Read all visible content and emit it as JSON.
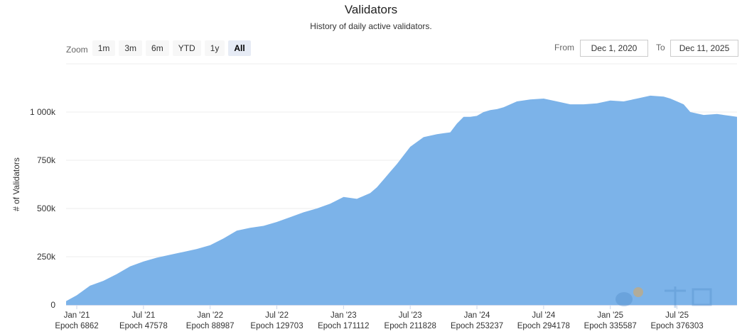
{
  "header": {
    "title": "Validators",
    "subtitle": "History of daily active validators."
  },
  "zoom": {
    "label": "Zoom",
    "buttons": [
      "1m",
      "3m",
      "6m",
      "YTD",
      "1y",
      "All"
    ],
    "active": "All"
  },
  "range": {
    "from_label": "From",
    "from_value": "Dec 1, 2020",
    "to_label": "To",
    "to_value": "Dec 11, 2025"
  },
  "chart_data": {
    "type": "area",
    "title": "Validators",
    "subtitle": "History of daily active validators.",
    "ylabel": "# of Validators",
    "xlabel": "",
    "ylim": [
      0,
      1250000
    ],
    "yticks": [
      0,
      250000,
      500000,
      750000,
      1000000
    ],
    "ytick_labels": [
      "0",
      "250k",
      "500k",
      "750k",
      "1 000k"
    ],
    "xlim": [
      2020.92,
      2025.95
    ],
    "xticks": [
      {
        "x": 2021.0,
        "label": "Jan '21",
        "epoch": "Epoch 6862"
      },
      {
        "x": 2021.5,
        "label": "Jul '21",
        "epoch": "Epoch 47578"
      },
      {
        "x": 2022.0,
        "label": "Jan '22",
        "epoch": "Epoch 88987"
      },
      {
        "x": 2022.5,
        "label": "Jul '22",
        "epoch": "Epoch 129703"
      },
      {
        "x": 2023.0,
        "label": "Jan '23",
        "epoch": "Epoch 171112"
      },
      {
        "x": 2023.5,
        "label": "Jul '23",
        "epoch": "Epoch 211828"
      },
      {
        "x": 2024.0,
        "label": "Jan '24",
        "epoch": "Epoch 253237"
      },
      {
        "x": 2024.5,
        "label": "Jul '24",
        "epoch": "Epoch 294178"
      },
      {
        "x": 2025.0,
        "label": "Jan '25",
        "epoch": "Epoch 335587"
      },
      {
        "x": 2025.5,
        "label": "Jul '25",
        "epoch": "Epoch 376303"
      }
    ],
    "grid": true,
    "legend": "none",
    "color": "#7cb3e9",
    "series": [
      {
        "name": "Validators",
        "x": [
          2020.92,
          2021.0,
          2021.1,
          2021.2,
          2021.3,
          2021.4,
          2021.5,
          2021.6,
          2021.7,
          2021.8,
          2021.9,
          2022.0,
          2022.1,
          2022.2,
          2022.3,
          2022.4,
          2022.45,
          2022.5,
          2022.6,
          2022.7,
          2022.8,
          2022.9,
          2023.0,
          2023.1,
          2023.2,
          2023.25,
          2023.3,
          2023.35,
          2023.4,
          2023.5,
          2023.6,
          2023.7,
          2023.75,
          2023.8,
          2023.85,
          2023.9,
          2023.95,
          2024.0,
          2024.05,
          2024.1,
          2024.15,
          2024.2,
          2024.3,
          2024.4,
          2024.5,
          2024.6,
          2024.7,
          2024.8,
          2024.9,
          2025.0,
          2025.1,
          2025.2,
          2025.3,
          2025.4,
          2025.45,
          2025.5,
          2025.55,
          2025.6,
          2025.7,
          2025.8,
          2025.85,
          2025.9,
          2025.95
        ],
        "values": [
          20000,
          50000,
          100000,
          125000,
          160000,
          200000,
          225000,
          245000,
          260000,
          275000,
          290000,
          310000,
          345000,
          385000,
          400000,
          410000,
          420000,
          430000,
          455000,
          480000,
          500000,
          525000,
          560000,
          550000,
          580000,
          610000,
          650000,
          690000,
          730000,
          820000,
          870000,
          885000,
          890000,
          895000,
          940000,
          975000,
          975000,
          980000,
          1000000,
          1010000,
          1015000,
          1025000,
          1055000,
          1065000,
          1070000,
          1055000,
          1040000,
          1040000,
          1045000,
          1060000,
          1055000,
          1070000,
          1085000,
          1080000,
          1070000,
          1055000,
          1040000,
          1000000,
          985000,
          990000,
          985000,
          980000,
          975000
        ]
      }
    ]
  }
}
